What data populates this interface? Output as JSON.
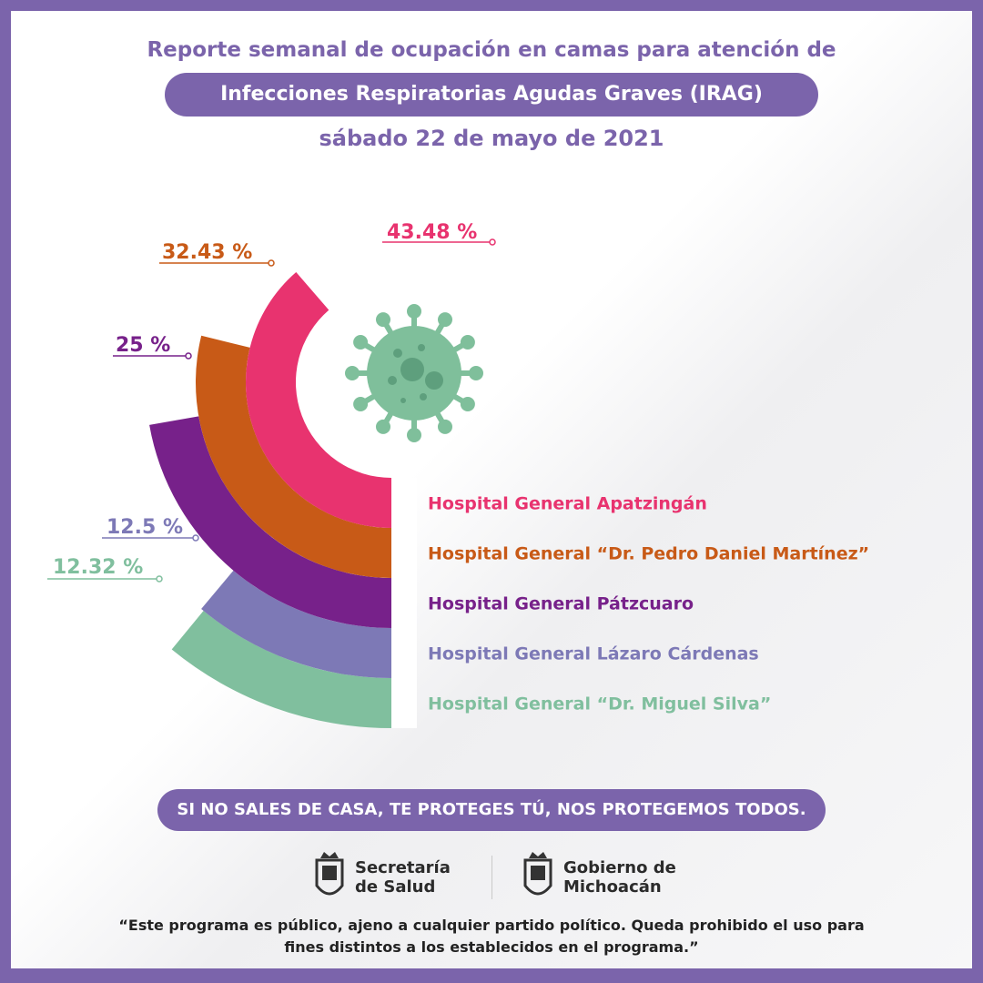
{
  "header": {
    "line1": "Reporte semanal de ocupación en camas para atención de",
    "pill": "Infecciones Respiratorias Agudas Graves (IRAG)",
    "date": "sábado 22 de mayo de 2021"
  },
  "chart_data": {
    "type": "radial-bar",
    "unit": "%",
    "series": [
      {
        "name": "Hospital General Apatzingán",
        "value": 43.48,
        "label": "43.48 %",
        "color": "#e8336f"
      },
      {
        "name": "Hospital General “Dr. Pedro Daniel Martínez”",
        "value": 32.43,
        "label": "32.43 %",
        "color": "#c85a17"
      },
      {
        "name": "Hospital General Pátzcuaro",
        "value": 25,
        "label": "25 %",
        "color": "#77218a"
      },
      {
        "name": "Hospital General Lázaro Cárdenas",
        "value": 12.5,
        "label": "12.5 %",
        "color": "#7d79b6"
      },
      {
        "name": "Hospital General “Dr. Miguel Silva”",
        "value": 12.32,
        "label": "12.32 %",
        "color": "#80bf9e"
      }
    ],
    "center_icon": "virus-icon",
    "virus_color": "#7fbf9b"
  },
  "footer": {
    "slogan": "SI NO SALES DE CASA, TE PROTEGES TÚ, NOS PROTEGEMOS TODOS.",
    "logo_left": "Secretaría\nde Salud",
    "logo_right": "Gobierno de\nMichoacán",
    "disclaimer": "“Este programa es público, ajeno a cualquier partido político. Queda prohibido el uso para fines distintos a los establecidos en el programa.”"
  },
  "colors": {
    "frame": "#7b64ab",
    "text_dark": "#222222"
  }
}
